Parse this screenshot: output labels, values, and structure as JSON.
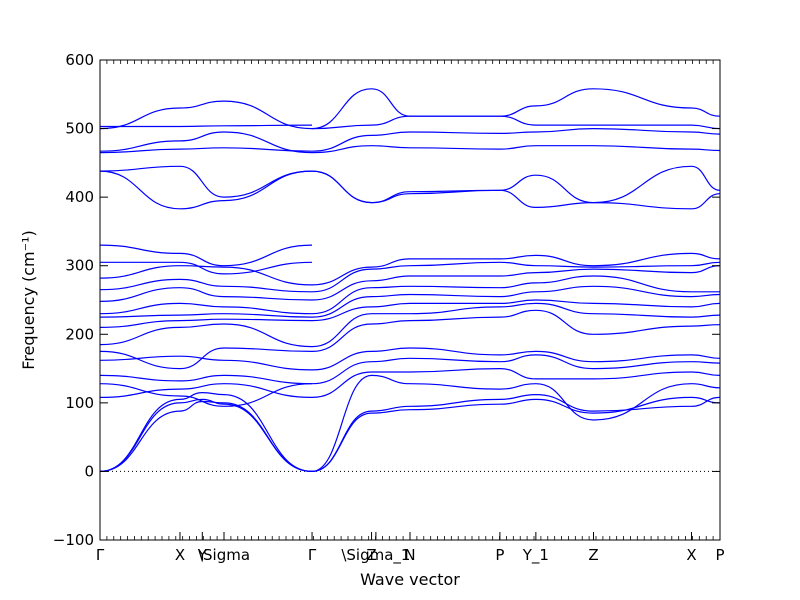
{
  "chart_data": {
    "type": "line",
    "xlabel": "Wave vector",
    "ylabel": "Frequency (cm⁻¹)",
    "ylim": [
      -100,
      600
    ],
    "yticks": [
      -100,
      0,
      100,
      200,
      300,
      400,
      500,
      600
    ],
    "xlim": [
      0,
      1.0
    ],
    "high_symmetry_points": [
      {
        "label": "Γ",
        "x": 0.0
      },
      {
        "label": "X",
        "x": 0.129
      },
      {
        "label": "Y",
        "x": 0.165
      },
      {
        "label": "\\Sigma",
        "x": 0.2
      },
      {
        "label": "Γ",
        "x": 0.342
      },
      {
        "label": "Z",
        "x": 0.438
      },
      {
        "label": "\\Sigma_1",
        "x": 0.445
      },
      {
        "label": "N",
        "x": 0.5
      },
      {
        "label": "P",
        "x": 0.645
      },
      {
        "label": "Y_1",
        "x": 0.703
      },
      {
        "label": "Z",
        "x": 0.796
      },
      {
        "label": "X",
        "x": 0.954
      },
      {
        "label": "P",
        "x": 1.0
      }
    ],
    "zero_line": true,
    "series_color": "#0000ff",
    "bands": [
      {
        "x": [
          0,
          0.129,
          0.165,
          0.2,
          0.342
        ],
        "y": [
          0,
          88,
          102,
          100,
          0
        ]
      },
      {
        "x": [
          0,
          0.129,
          0.165,
          0.2,
          0.342
        ],
        "y": [
          0,
          100,
          105,
          98,
          0
        ]
      },
      {
        "x": [
          0,
          0.129,
          0.165,
          0.2,
          0.342
        ],
        "y": [
          0,
          105,
          115,
          112,
          0
        ]
      },
      {
        "x": [
          0,
          0.129,
          0.2,
          0.342
        ],
        "y": [
          108,
          120,
          128,
          108
        ]
      },
      {
        "x": [
          0,
          0.129,
          0.2,
          0.342
        ],
        "y": [
          128,
          110,
          95,
          128
        ]
      },
      {
        "x": [
          0,
          0.129,
          0.2,
          0.342
        ],
        "y": [
          140,
          132,
          140,
          128
        ]
      },
      {
        "x": [
          0,
          0.129,
          0.2,
          0.342
        ],
        "y": [
          162,
          168,
          162,
          148
        ]
      },
      {
        "x": [
          0,
          0.129,
          0.2,
          0.342
        ],
        "y": [
          175,
          150,
          180,
          175
        ]
      },
      {
        "x": [
          0,
          0.129,
          0.2,
          0.342
        ],
        "y": [
          185,
          210,
          215,
          182
        ]
      },
      {
        "x": [
          0,
          0.129,
          0.2,
          0.342
        ],
        "y": [
          210,
          220,
          222,
          220
        ]
      },
      {
        "x": [
          0,
          0.129,
          0.2,
          0.342
        ],
        "y": [
          225,
          228,
          230,
          225
        ]
      },
      {
        "x": [
          0,
          0.129,
          0.2,
          0.342
        ],
        "y": [
          230,
          245,
          240,
          230
        ]
      },
      {
        "x": [
          0,
          0.129,
          0.2,
          0.342
        ],
        "y": [
          248,
          268,
          255,
          250
        ]
      },
      {
        "x": [
          0,
          0.129,
          0.2,
          0.342
        ],
        "y": [
          265,
          280,
          270,
          262
        ]
      },
      {
        "x": [
          0,
          0.129,
          0.2,
          0.342
        ],
        "y": [
          282,
          300,
          298,
          272
        ]
      },
      {
        "x": [
          0,
          0.129,
          0.2,
          0.342
        ],
        "y": [
          305,
          305,
          288,
          305
        ]
      },
      {
        "x": [
          0,
          0.129,
          0.2,
          0.342
        ],
        "y": [
          330,
          318,
          300,
          330
        ]
      },
      {
        "x": [
          0,
          0.129,
          0.2,
          0.342
        ],
        "y": [
          438,
          445,
          400,
          438
        ]
      },
      {
        "x": [
          0,
          0.129,
          0.2,
          0.342
        ],
        "y": [
          438,
          383,
          395,
          438
        ]
      },
      {
        "x": [
          0,
          0.129,
          0.2,
          0.342
        ],
        "y": [
          465,
          470,
          472,
          467
        ]
      },
      {
        "x": [
          0,
          0.129,
          0.2,
          0.342
        ],
        "y": [
          467,
          482,
          495,
          465
        ]
      },
      {
        "x": [
          0,
          0.129,
          0.2,
          0.342
        ],
        "y": [
          500,
          530,
          540,
          500
        ]
      },
      {
        "x": [
          0,
          0.129,
          0.2,
          0.342
        ],
        "y": [
          503,
          503,
          504,
          505
        ]
      },
      {
        "x": [
          0.342,
          0.438,
          0.5,
          0.645,
          0.703,
          0.796,
          0.954,
          1.0
        ],
        "y": [
          0,
          85,
          90,
          98,
          105,
          85,
          108,
          100
        ]
      },
      {
        "x": [
          0.342,
          0.438,
          0.5,
          0.645,
          0.703,
          0.796,
          0.954,
          1.0
        ],
        "y": [
          0,
          88,
          95,
          105,
          112,
          88,
          95,
          108
        ]
      },
      {
        "x": [
          0.342,
          0.438,
          0.5,
          0.645,
          0.703,
          0.796,
          0.954,
          1.0
        ],
        "y": [
          0,
          140,
          128,
          120,
          128,
          75,
          128,
          122
        ]
      },
      {
        "x": [
          0.342,
          0.438,
          0.5,
          0.645,
          0.703,
          0.796,
          0.954,
          1.0
        ],
        "y": [
          108,
          145,
          145,
          150,
          135,
          135,
          145,
          140
        ]
      },
      {
        "x": [
          0.342,
          0.438,
          0.5,
          0.645,
          0.703,
          0.796,
          0.954,
          1.0
        ],
        "y": [
          128,
          160,
          165,
          160,
          170,
          150,
          160,
          158
        ]
      },
      {
        "x": [
          0.342,
          0.438,
          0.5,
          0.645,
          0.703,
          0.796,
          0.954,
          1.0
        ],
        "y": [
          148,
          175,
          180,
          170,
          175,
          160,
          170,
          165
        ]
      },
      {
        "x": [
          0.342,
          0.438,
          0.5,
          0.645,
          0.703,
          0.796,
          0.954,
          1.0
        ],
        "y": [
          175,
          215,
          220,
          225,
          235,
          200,
          212,
          214
        ]
      },
      {
        "x": [
          0.342,
          0.438,
          0.5,
          0.645,
          0.703,
          0.796,
          0.954,
          1.0
        ],
        "y": [
          182,
          230,
          230,
          240,
          245,
          230,
          225,
          228
        ]
      },
      {
        "x": [
          0.342,
          0.438,
          0.5,
          0.645,
          0.703,
          0.796,
          0.954,
          1.0
        ],
        "y": [
          220,
          240,
          245,
          245,
          250,
          245,
          240,
          245
        ]
      },
      {
        "x": [
          0.342,
          0.438,
          0.5,
          0.645,
          0.703,
          0.796,
          0.954,
          1.0
        ],
        "y": [
          225,
          255,
          258,
          255,
          262,
          270,
          255,
          258
        ]
      },
      {
        "x": [
          0.342,
          0.438,
          0.5,
          0.645,
          0.703,
          0.796,
          0.954,
          1.0
        ],
        "y": [
          230,
          268,
          270,
          268,
          275,
          285,
          262,
          262
        ]
      },
      {
        "x": [
          0.342,
          0.438,
          0.5,
          0.645,
          0.703,
          0.796,
          0.954,
          1.0
        ],
        "y": [
          250,
          278,
          285,
          285,
          290,
          295,
          290,
          300
        ]
      },
      {
        "x": [
          0.342,
          0.438,
          0.5,
          0.645,
          0.703,
          0.796,
          0.954,
          1.0
        ],
        "y": [
          262,
          295,
          300,
          305,
          300,
          298,
          300,
          305
        ]
      },
      {
        "x": [
          0.342,
          0.438,
          0.5,
          0.645,
          0.703,
          0.796,
          0.954,
          1.0
        ],
        "y": [
          272,
          298,
          310,
          310,
          315,
          300,
          318,
          310
        ]
      },
      {
        "x": [
          0.342,
          0.438,
          0.5,
          0.645,
          0.703,
          0.796,
          0.954,
          1.0
        ],
        "y": [
          438,
          392,
          408,
          410,
          385,
          392,
          445,
          410
        ]
      },
      {
        "x": [
          0.342,
          0.438,
          0.5,
          0.645,
          0.703,
          0.796,
          0.954,
          1.0
        ],
        "y": [
          438,
          392,
          405,
          410,
          432,
          392,
          383,
          405
        ]
      },
      {
        "x": [
          0.342,
          0.438,
          0.5,
          0.645,
          0.703,
          0.796,
          0.954,
          1.0
        ],
        "y": [
          465,
          475,
          472,
          470,
          475,
          475,
          470,
          468
        ]
      },
      {
        "x": [
          0.342,
          0.438,
          0.5,
          0.645,
          0.703,
          0.796,
          0.954,
          1.0
        ],
        "y": [
          467,
          490,
          495,
          493,
          495,
          500,
          495,
          492
        ]
      },
      {
        "x": [
          0.342,
          0.438,
          0.5,
          0.645,
          0.703,
          0.796,
          0.954,
          1.0
        ],
        "y": [
          500,
          505,
          518,
          518,
          533,
          558,
          530,
          518
        ]
      },
      {
        "x": [
          0.342,
          0.438,
          0.5,
          0.645,
          0.703,
          0.796,
          0.954,
          1.0
        ],
        "y": [
          500,
          558,
          518,
          518,
          505,
          505,
          505,
          500
        ]
      }
    ]
  }
}
